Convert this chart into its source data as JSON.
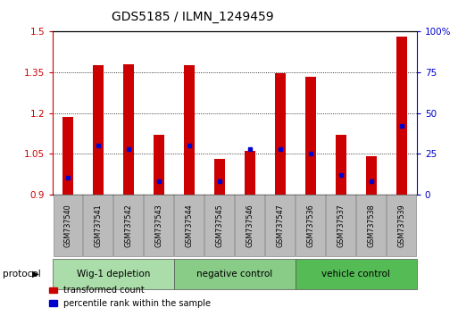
{
  "title": "GDS5185 / ILMN_1249459",
  "samples": [
    "GSM737540",
    "GSM737541",
    "GSM737542",
    "GSM737543",
    "GSM737544",
    "GSM737545",
    "GSM737546",
    "GSM737547",
    "GSM737536",
    "GSM737537",
    "GSM737538",
    "GSM737539"
  ],
  "transformed_count": [
    1.185,
    1.375,
    1.38,
    1.12,
    1.375,
    1.03,
    1.06,
    1.345,
    1.335,
    1.12,
    1.04,
    1.48
  ],
  "percentile_rank": [
    10,
    30,
    28,
    8,
    30,
    8,
    28,
    28,
    25,
    12,
    8,
    42
  ],
  "baseline": 0.9,
  "ylim": [
    0.9,
    1.5
  ],
  "y2lim": [
    0,
    100
  ],
  "yticks": [
    0.9,
    1.05,
    1.2,
    1.35,
    1.5
  ],
  "ytick_labels": [
    "0.9",
    "1.05",
    "1.2",
    "1.35",
    "1.5"
  ],
  "y2ticks": [
    0,
    25,
    50,
    75,
    100
  ],
  "y2tick_labels": [
    "0",
    "25",
    "50",
    "75",
    "100%"
  ],
  "bar_color": "#cc0000",
  "percentile_color": "#0000cc",
  "bar_width": 0.35,
  "groups": [
    {
      "label": "Wig-1 depletion",
      "start": 0,
      "end": 4,
      "color": "#aaddaa"
    },
    {
      "label": "negative control",
      "start": 4,
      "end": 8,
      "color": "#88cc88"
    },
    {
      "label": "vehicle control",
      "start": 8,
      "end": 12,
      "color": "#55bb55"
    }
  ],
  "protocol_label": "protocol",
  "legend_items": [
    {
      "label": "transformed count",
      "color": "#cc0000"
    },
    {
      "label": "percentile rank within the sample",
      "color": "#0000cc"
    }
  ],
  "background_color": "#ffffff",
  "label_cell_color": "#bbbbbb",
  "label_cell_edge": "#888888"
}
